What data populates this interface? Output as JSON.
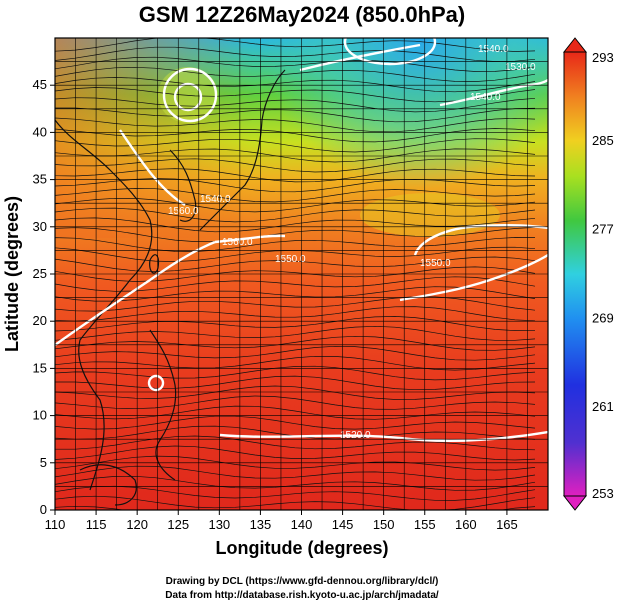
{
  "title": "GSM 12Z26May2024 (850.0hPa)",
  "x_axis": {
    "label": "Longitude (degrees)",
    "ticks": [
      "110",
      "115",
      "120",
      "125",
      "130",
      "135",
      "140",
      "145",
      "150",
      "155",
      "160",
      "165"
    ]
  },
  "y_axis": {
    "label": "Latitude  (degrees)",
    "ticks": [
      "0",
      "5",
      "10",
      "15",
      "20",
      "25",
      "30",
      "35",
      "40",
      "45"
    ]
  },
  "colorbar": {
    "ticks": [
      "293",
      "285",
      "277",
      "269",
      "261",
      "253"
    ]
  },
  "contour_labels": [
    "1560.0",
    "1560.0",
    "1550.0",
    "1540.0",
    "1550.0",
    "1540.0",
    "1530.0",
    "1540.0",
    "1520.0"
  ],
  "credits": {
    "line1": "Drawing by DCL (https://www.gfd-dennou.org/library/dcl/)",
    "line2": "Data from http://database.rish.kyoto-u.ac.jp/arch/jmadata/"
  },
  "colors": {
    "warm": "#e8281e",
    "orange": "#f08c20",
    "yellow": "#e8d020",
    "green": "#40c040",
    "cyan": "#30c8e8",
    "blue": "#2040e0",
    "magenta": "#e020c0"
  }
}
